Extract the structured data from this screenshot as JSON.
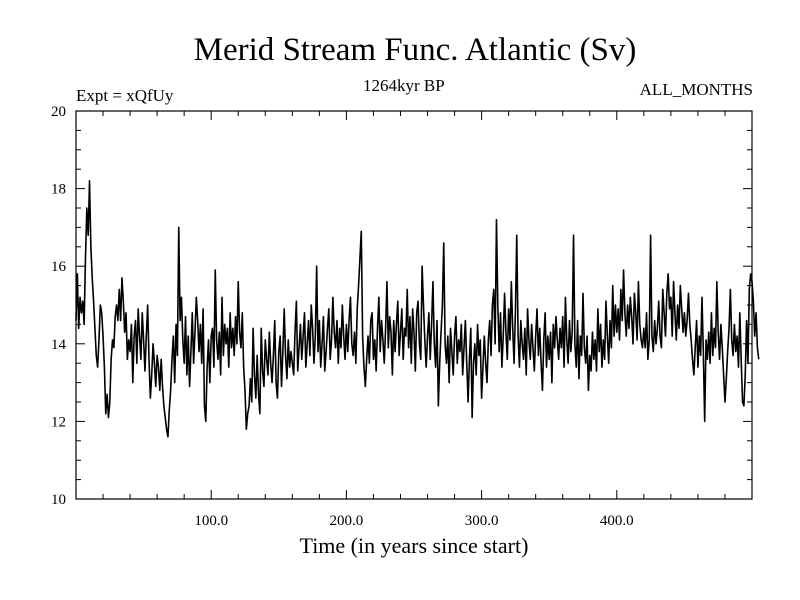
{
  "chart_data": {
    "type": "line",
    "title": "Merid Stream Func. Atlantic (Sv)",
    "experiment_label": "Expt = xQfUy",
    "period_label": "1264kyr BP",
    "season_label": "ALL_MONTHS",
    "xlabel": "Time (in years since start)",
    "ylabel": "",
    "xlim": [
      0,
      500
    ],
    "ylim": [
      10,
      20
    ],
    "x_ticks": [
      100,
      200,
      300,
      400
    ],
    "x_tick_labels": [
      "100.0",
      "200.0",
      "300.0",
      "400.0"
    ],
    "y_ticks": [
      10,
      12,
      14,
      16,
      18,
      20
    ],
    "y_tick_labels": [
      "10",
      "12",
      "14",
      "16",
      "18",
      "20"
    ],
    "grid": false,
    "line_color": "#000000",
    "series": [
      {
        "name": "Merid Stream Func. Atlantic",
        "x_start": 0,
        "x_step": 1,
        "values": [
          14.6,
          15.8,
          14.4,
          15.2,
          14.8,
          15.1,
          14.5,
          16.2,
          17.5,
          16.8,
          18.2,
          16.5,
          15.7,
          15.1,
          14.4,
          13.7,
          13.4,
          14.1,
          15.0,
          14.8,
          14.2,
          13.4,
          12.2,
          12.7,
          12.1,
          12.5,
          13.6,
          14.1,
          13.9,
          14.7,
          15.0,
          14.6,
          15.4,
          14.6,
          15.7,
          15.1,
          14.3,
          14.8,
          13.6,
          14.1,
          13.8,
          14.5,
          13.0,
          14.2,
          14.6,
          13.5,
          14.9,
          14.2,
          13.6,
          14.8,
          14.1,
          13.3,
          14.2,
          15.0,
          13.6,
          12.6,
          13.2,
          14.0,
          13.5,
          12.9,
          13.7,
          13.4,
          12.8,
          13.6,
          12.9,
          12.4,
          12.1,
          11.8,
          11.6,
          12.3,
          12.8,
          13.6,
          14.2,
          13.0,
          14.5,
          13.7,
          17.0,
          14.6,
          15.2,
          14.1,
          13.5,
          14.7,
          13.2,
          14.2,
          12.9,
          13.8,
          14.8,
          13.5,
          14.3,
          15.2,
          14.6,
          13.8,
          14.5,
          13.5,
          14.9,
          12.4,
          12.0,
          13.4,
          14.1,
          13.0,
          14.2,
          14.4,
          13.4,
          15.9,
          14.1,
          13.6,
          14.3,
          13.2,
          15.2,
          13.7,
          14.5,
          14.0,
          14.4,
          13.4,
          14.8,
          13.9,
          14.4,
          13.7,
          14.7,
          14.0,
          15.6,
          14.3,
          13.9,
          14.8,
          13.4,
          12.8,
          11.8,
          12.2,
          12.4,
          13.1,
          12.5,
          14.4,
          13.2,
          12.6,
          13.7,
          12.7,
          12.2,
          14.4,
          13.3,
          12.9,
          14.1,
          13.6,
          13.2,
          14.3,
          13.5,
          13.0,
          13.7,
          14.6,
          13.0,
          12.6,
          13.8,
          14.2,
          12.9,
          13.8,
          14.9,
          13.7,
          13.1,
          14.1,
          13.4,
          13.8,
          13.5,
          13.2,
          14.3,
          15.1,
          13.3,
          13.9,
          14.5,
          13.6,
          14.2,
          14.8,
          13.4,
          14.0,
          14.6,
          13.7,
          15.0,
          14.4,
          13.5,
          14.2,
          16.0,
          13.8,
          14.6,
          13.4,
          14.0,
          14.7,
          13.3,
          13.8,
          14.4,
          14.9,
          13.6,
          14.1,
          15.2,
          14.3,
          13.9,
          14.6,
          13.5,
          14.4,
          13.9,
          15.0,
          14.2,
          13.6,
          14.5,
          13.8,
          14.6,
          15.2,
          14.0,
          13.7,
          14.3,
          13.5,
          14.9,
          15.5,
          16.2,
          16.9,
          14.2,
          13.4,
          12.9,
          13.6,
          14.2,
          13.5,
          14.6,
          14.8,
          13.6,
          14.1,
          13.3,
          14.4,
          15.2,
          13.8,
          14.6,
          14.1,
          13.5,
          14.4,
          15.6,
          13.9,
          14.7,
          14.3,
          13.2,
          14.6,
          13.8,
          14.5,
          15.1,
          13.7,
          14.3,
          14.9,
          13.6,
          14.4,
          14.2,
          15.4,
          13.9,
          14.7,
          13.5,
          14.9,
          14.3,
          13.3,
          14.8,
          15.1,
          14.0,
          13.6,
          16.0,
          15.0,
          14.1,
          13.4,
          14.2,
          14.8,
          13.6,
          14.5,
          15.6,
          14.0,
          13.4,
          14.6,
          12.4,
          13.5,
          14.3,
          15.0,
          16.6,
          14.0,
          13.5,
          14.2,
          13.0,
          14.4,
          13.8,
          13.2,
          14.2,
          14.7,
          13.5,
          14.1,
          13.8,
          14.5,
          13.2,
          13.9,
          14.6,
          13.5,
          12.5,
          13.6,
          14.4,
          12.1,
          13.5,
          14.0,
          13.2,
          14.5,
          13.7,
          14.1,
          12.6,
          13.4,
          14.2,
          13.5,
          13.0,
          14.1,
          14.6,
          13.7,
          15.0,
          15.4,
          14.0,
          17.2,
          15.0,
          13.8,
          14.8,
          13.4,
          14.2,
          15.3,
          14.3,
          13.6,
          14.9,
          14.1,
          15.6,
          14.4,
          13.5,
          14.8,
          16.8,
          14.2,
          13.4,
          14.6,
          14.0,
          13.6,
          14.4,
          13.2,
          14.9,
          14.1,
          13.6,
          14.5,
          13.9,
          13.3,
          14.2,
          14.9,
          13.7,
          14.4,
          13.5,
          12.8,
          14.1,
          14.8,
          13.4,
          14.2,
          13.6,
          14.3,
          13.0,
          14.5,
          13.9,
          14.7,
          14.1,
          13.6,
          14.4,
          13.9,
          14.7,
          13.4,
          15.2,
          14.1,
          13.5,
          14.6,
          13.8,
          14.3,
          16.8,
          14.0,
          13.4,
          14.6,
          13.1,
          14.2,
          13.7,
          15.3,
          13.9,
          13.5,
          14.2,
          12.8,
          13.7,
          13.3,
          14.3,
          13.6,
          14.1,
          13.3,
          14.9,
          13.8,
          14.5,
          13.4,
          14.1,
          13.6,
          15.1,
          14.2,
          13.5,
          14.6,
          13.9,
          15.5,
          14.2,
          15.0,
          14.3,
          14.9,
          14.1,
          15.4,
          14.6,
          15.9,
          14.8,
          14.2,
          15.0,
          14.4,
          15.2,
          14.7,
          14.0,
          15.3,
          14.8,
          14.1,
          15.6,
          14.5,
          14.1,
          13.9,
          14.4,
          13.9,
          14.8,
          13.6,
          14.1,
          16.8,
          14.2,
          13.8,
          14.6,
          14.0,
          14.4,
          15.1,
          14.2,
          13.9,
          15.4,
          14.8,
          14.2,
          15.3,
          15.8,
          14.9,
          15.2,
          14.2,
          15.6,
          14.8,
          14.1,
          15.0,
          14.4,
          15.5,
          14.9,
          14.3,
          14.8,
          14.2,
          14.6,
          15.3,
          14.5,
          14.1,
          13.6,
          13.2,
          13.9,
          14.6,
          13.4,
          14.2,
          13.7,
          15.2,
          13.8,
          12.0,
          14.1,
          13.6,
          14.3,
          13.5,
          14.8,
          13.7,
          14.4,
          13.9,
          15.6,
          14.3,
          13.6,
          14.5,
          13.9,
          13.2,
          12.5,
          13.1,
          13.8,
          14.4,
          15.4,
          14.1,
          13.7,
          14.5,
          13.8,
          14.2,
          13.4,
          14.8,
          13.6,
          12.5,
          12.4,
          13.2,
          14.6,
          13.5,
          15.4,
          15.8,
          15.6,
          15.1,
          14.2,
          14.8,
          13.9,
          13.6
        ]
      }
    ]
  }
}
